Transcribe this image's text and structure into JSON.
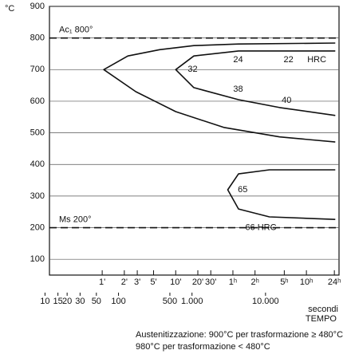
{
  "chart_data": {
    "type": "line",
    "y_label": "°C",
    "x_label": "secondi",
    "x_title": "TEMPO",
    "log_x": true,
    "xlim": [
      11.5,
      100000
    ],
    "ylim": [
      50,
      900
    ],
    "yticks": [
      100,
      200,
      300,
      400,
      500,
      600,
      700,
      800,
      900
    ],
    "xticks": [
      10,
      15,
      20,
      30,
      50,
      100,
      500,
      {
        "value": 1000,
        "label": "1.000"
      },
      {
        "value": 10000,
        "label": "10.000"
      }
    ],
    "top_ticks": [
      {
        "value": 60,
        "label": "1'"
      },
      {
        "value": 120,
        "label": "2'"
      },
      {
        "value": 180,
        "label": "3'"
      },
      {
        "value": 300,
        "label": "5'"
      },
      {
        "value": 600,
        "label": "10'"
      },
      {
        "value": 1200,
        "label": "20'"
      },
      {
        "value": 1800,
        "label": "30'"
      },
      {
        "value": 3600,
        "label": "1ʰ"
      },
      {
        "value": 7200,
        "label": "2ʰ"
      },
      {
        "value": 18000,
        "label": "5ʰ"
      },
      {
        "value": 36000,
        "label": "10ʰ"
      },
      {
        "value": 86400,
        "label": "24ʰ"
      }
    ],
    "grid": true,
    "reference_lines": [
      {
        "label": "Ac₁ 800°",
        "value": 800
      },
      {
        "label": "Ms 200°",
        "value": 200
      }
    ],
    "series": [
      {
        "color": "#111",
        "x": [
          89000,
          4290,
          1058,
          363,
          134,
          63,
          172,
          600,
          2700,
          15600,
          89000
        ],
        "values": [
          784,
          781,
          776,
          763,
          743,
          700,
          630,
          567,
          517,
          487,
          471
        ]
      },
      {
        "color": "#111",
        "x": [
          89000,
          15600,
          4290,
          1058,
          600,
          1058,
          4290,
          15600,
          89000
        ],
        "values": [
          759,
          759,
          759,
          743,
          700,
          643,
          605,
          580,
          555
        ]
      },
      {
        "color": "#111",
        "x": [
          89000,
          11300,
          4290,
          3060,
          4290,
          11300,
          89000
        ],
        "values": [
          383,
          383,
          370,
          320,
          259,
          234,
          226
        ]
      }
    ],
    "annotations": [
      {
        "text": "24",
        "x": 3640,
        "y": 731
      },
      {
        "text": "22",
        "x": 17600,
        "y": 731
      },
      {
        "text": "HRC",
        "x": 37000,
        "y": 731
      },
      {
        "text": "32",
        "x": 875,
        "y": 700
      },
      {
        "text": "38",
        "x": 3640,
        "y": 637
      },
      {
        "text": "40",
        "x": 16600,
        "y": 602
      },
      {
        "text": "65",
        "x": 4200,
        "y": 320
      },
      {
        "text": "66 HRC",
        "x": 5300,
        "y": 200
      }
    ],
    "notes": [
      "Austenitizzazione: 900°C per trasformazione ≥ 480°C",
      "980°C per trasformazione < 480°C"
    ]
  }
}
